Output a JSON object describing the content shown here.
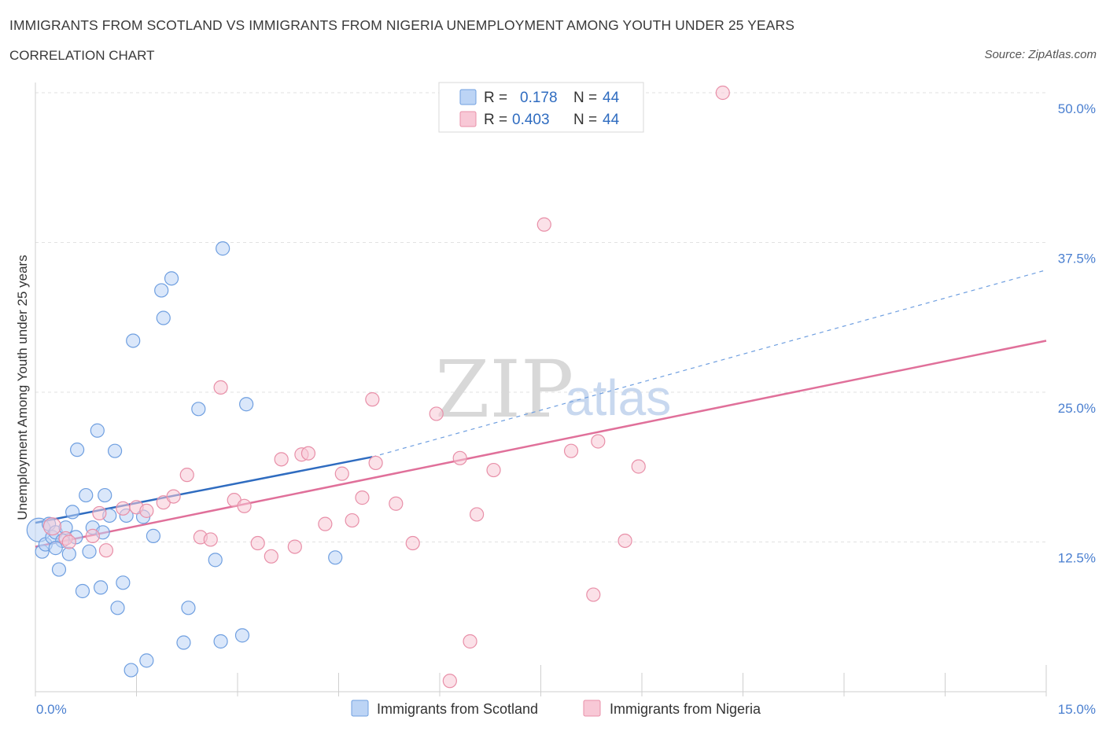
{
  "header": {
    "title": "IMMIGRANTS FROM SCOTLAND VS IMMIGRANTS FROM NIGERIA UNEMPLOYMENT AMONG YOUTH UNDER 25 YEARS",
    "subtitle": "CORRELATION CHART",
    "source": "Source: ZipAtlas.com"
  },
  "legend": {
    "r_label": "R =",
    "n_label": "N =",
    "scotland": {
      "r": "0.178",
      "n": "44"
    },
    "nigeria": {
      "r": "0.403",
      "n": "44"
    }
  },
  "watermark": {
    "zip": "ZIP",
    "atlas": "atlas"
  },
  "colors": {
    "scotland_fill": "#bcd4f5",
    "scotland_stroke": "#6f9fe0",
    "scotland_line": "#2f6cc0",
    "nigeria_fill": "#f8c8d6",
    "nigeria_stroke": "#e88fa8",
    "nigeria_line": "#e0709a",
    "grid": "#e2e2e2",
    "axis_text": "#4a7fd0"
  },
  "chart_data": {
    "type": "scatter",
    "title": "IMMIGRANTS FROM SCOTLAND VS IMMIGRANTS FROM NIGERIA UNEMPLOYMENT AMONG YOUTH UNDER 25 YEARS",
    "xlabel": "",
    "ylabel": "Unemployment Among Youth under 25 years",
    "xlim": [
      0,
      15
    ],
    "ylim": [
      0,
      50
    ],
    "x_tick_labels": [
      "0.0%",
      "15.0%"
    ],
    "y_ticks": [
      12.5,
      25.0,
      37.5,
      50.0
    ],
    "y_tick_labels": [
      "12.5%",
      "25.0%",
      "37.5%",
      "50.0%"
    ],
    "legend_labels": [
      "Immigrants from Scotland",
      "Immigrants from Nigeria"
    ],
    "series": [
      {
        "name": "Immigrants from Scotland",
        "r": 0.178,
        "n": 44,
        "trend": {
          "x0": 0,
          "y0": 14.1,
          "x1": 5.0,
          "y1": 19.6,
          "dash_to_x": 15.0,
          "dash_to_y": 35.2
        },
        "points": [
          [
            0.05,
            13.5,
            22
          ],
          [
            0.1,
            11.7,
            10
          ],
          [
            0.15,
            12.3,
            10
          ],
          [
            0.2,
            14.0,
            10
          ],
          [
            0.25,
            12.9,
            10
          ],
          [
            0.3,
            13.3,
            10
          ],
          [
            0.35,
            10.2,
            10
          ],
          [
            0.45,
            13.7,
            10
          ],
          [
            0.5,
            11.5,
            10
          ],
          [
            0.55,
            15.0,
            10
          ],
          [
            0.6,
            12.9,
            10
          ],
          [
            0.62,
            20.2,
            10
          ],
          [
            0.7,
            8.4,
            10
          ],
          [
            0.75,
            16.4,
            10
          ],
          [
            0.8,
            11.7,
            10
          ],
          [
            0.85,
            13.7,
            10
          ],
          [
            0.92,
            21.8,
            10
          ],
          [
            0.97,
            8.7,
            10
          ],
          [
            1.03,
            16.4,
            10
          ],
          [
            1.1,
            14.7,
            10
          ],
          [
            1.18,
            20.1,
            10
          ],
          [
            1.22,
            7.0,
            10
          ],
          [
            1.3,
            9.1,
            10
          ],
          [
            1.35,
            14.7,
            10
          ],
          [
            1.42,
            1.8,
            10
          ],
          [
            1.45,
            29.3,
            10
          ],
          [
            1.65,
            2.6,
            10
          ],
          [
            1.75,
            13.0,
            10
          ],
          [
            1.87,
            33.5,
            10
          ],
          [
            1.9,
            31.2,
            10
          ],
          [
            2.02,
            34.5,
            10
          ],
          [
            2.2,
            4.1,
            10
          ],
          [
            2.27,
            7.0,
            10
          ],
          [
            2.42,
            23.6,
            10
          ],
          [
            2.67,
            11.0,
            10
          ],
          [
            2.75,
            4.2,
            10
          ],
          [
            2.78,
            37.0,
            10
          ],
          [
            3.07,
            4.7,
            10
          ],
          [
            3.13,
            24.0,
            10
          ],
          [
            4.45,
            11.2,
            10
          ],
          [
            1.0,
            13.3,
            10
          ],
          [
            0.4,
            12.6,
            10
          ],
          [
            0.3,
            12.0,
            10
          ],
          [
            1.6,
            14.6,
            10
          ]
        ]
      },
      {
        "name": "Immigrants from Nigeria",
        "r": 0.403,
        "n": 44,
        "trend": {
          "x0": 0,
          "y0": 12.1,
          "x1": 15.0,
          "y1": 29.3
        },
        "points": [
          [
            0.25,
            13.8,
            14
          ],
          [
            0.45,
            12.8,
            10
          ],
          [
            0.85,
            13.0,
            10
          ],
          [
            0.95,
            14.9,
            10
          ],
          [
            1.05,
            11.8,
            10
          ],
          [
            1.3,
            15.3,
            10
          ],
          [
            1.5,
            15.4,
            10
          ],
          [
            1.65,
            15.1,
            10
          ],
          [
            1.9,
            15.8,
            10
          ],
          [
            2.05,
            16.3,
            10
          ],
          [
            2.25,
            18.1,
            10
          ],
          [
            2.45,
            12.9,
            10
          ],
          [
            2.6,
            12.7,
            10
          ],
          [
            2.75,
            25.4,
            10
          ],
          [
            2.95,
            16.0,
            10
          ],
          [
            3.1,
            15.5,
            10
          ],
          [
            3.3,
            12.4,
            10
          ],
          [
            3.5,
            11.3,
            10
          ],
          [
            3.65,
            19.4,
            10
          ],
          [
            3.95,
            19.8,
            10
          ],
          [
            4.05,
            19.9,
            10
          ],
          [
            4.3,
            14.0,
            10
          ],
          [
            4.55,
            18.2,
            10
          ],
          [
            4.7,
            14.3,
            10
          ],
          [
            4.85,
            16.2,
            10
          ],
          [
            5.0,
            24.4,
            10
          ],
          [
            5.05,
            19.1,
            10
          ],
          [
            5.35,
            15.7,
            10
          ],
          [
            5.6,
            12.4,
            10
          ],
          [
            5.95,
            23.2,
            10
          ],
          [
            6.15,
            0.9,
            10
          ],
          [
            6.3,
            19.5,
            10
          ],
          [
            6.45,
            4.2,
            10
          ],
          [
            6.55,
            14.8,
            10
          ],
          [
            6.8,
            18.5,
            10
          ],
          [
            7.95,
            20.1,
            10
          ],
          [
            8.35,
            20.9,
            10
          ],
          [
            8.28,
            8.1,
            10
          ],
          [
            8.75,
            12.6,
            10
          ],
          [
            8.95,
            18.8,
            10
          ],
          [
            7.55,
            39.0,
            10
          ],
          [
            10.2,
            50.0,
            10
          ],
          [
            0.5,
            12.5,
            10
          ],
          [
            3.85,
            12.1,
            10
          ]
        ]
      }
    ]
  },
  "bottom_legend": {
    "scotland": "Immigrants from Scotland",
    "nigeria": "Immigrants from Nigeria"
  }
}
